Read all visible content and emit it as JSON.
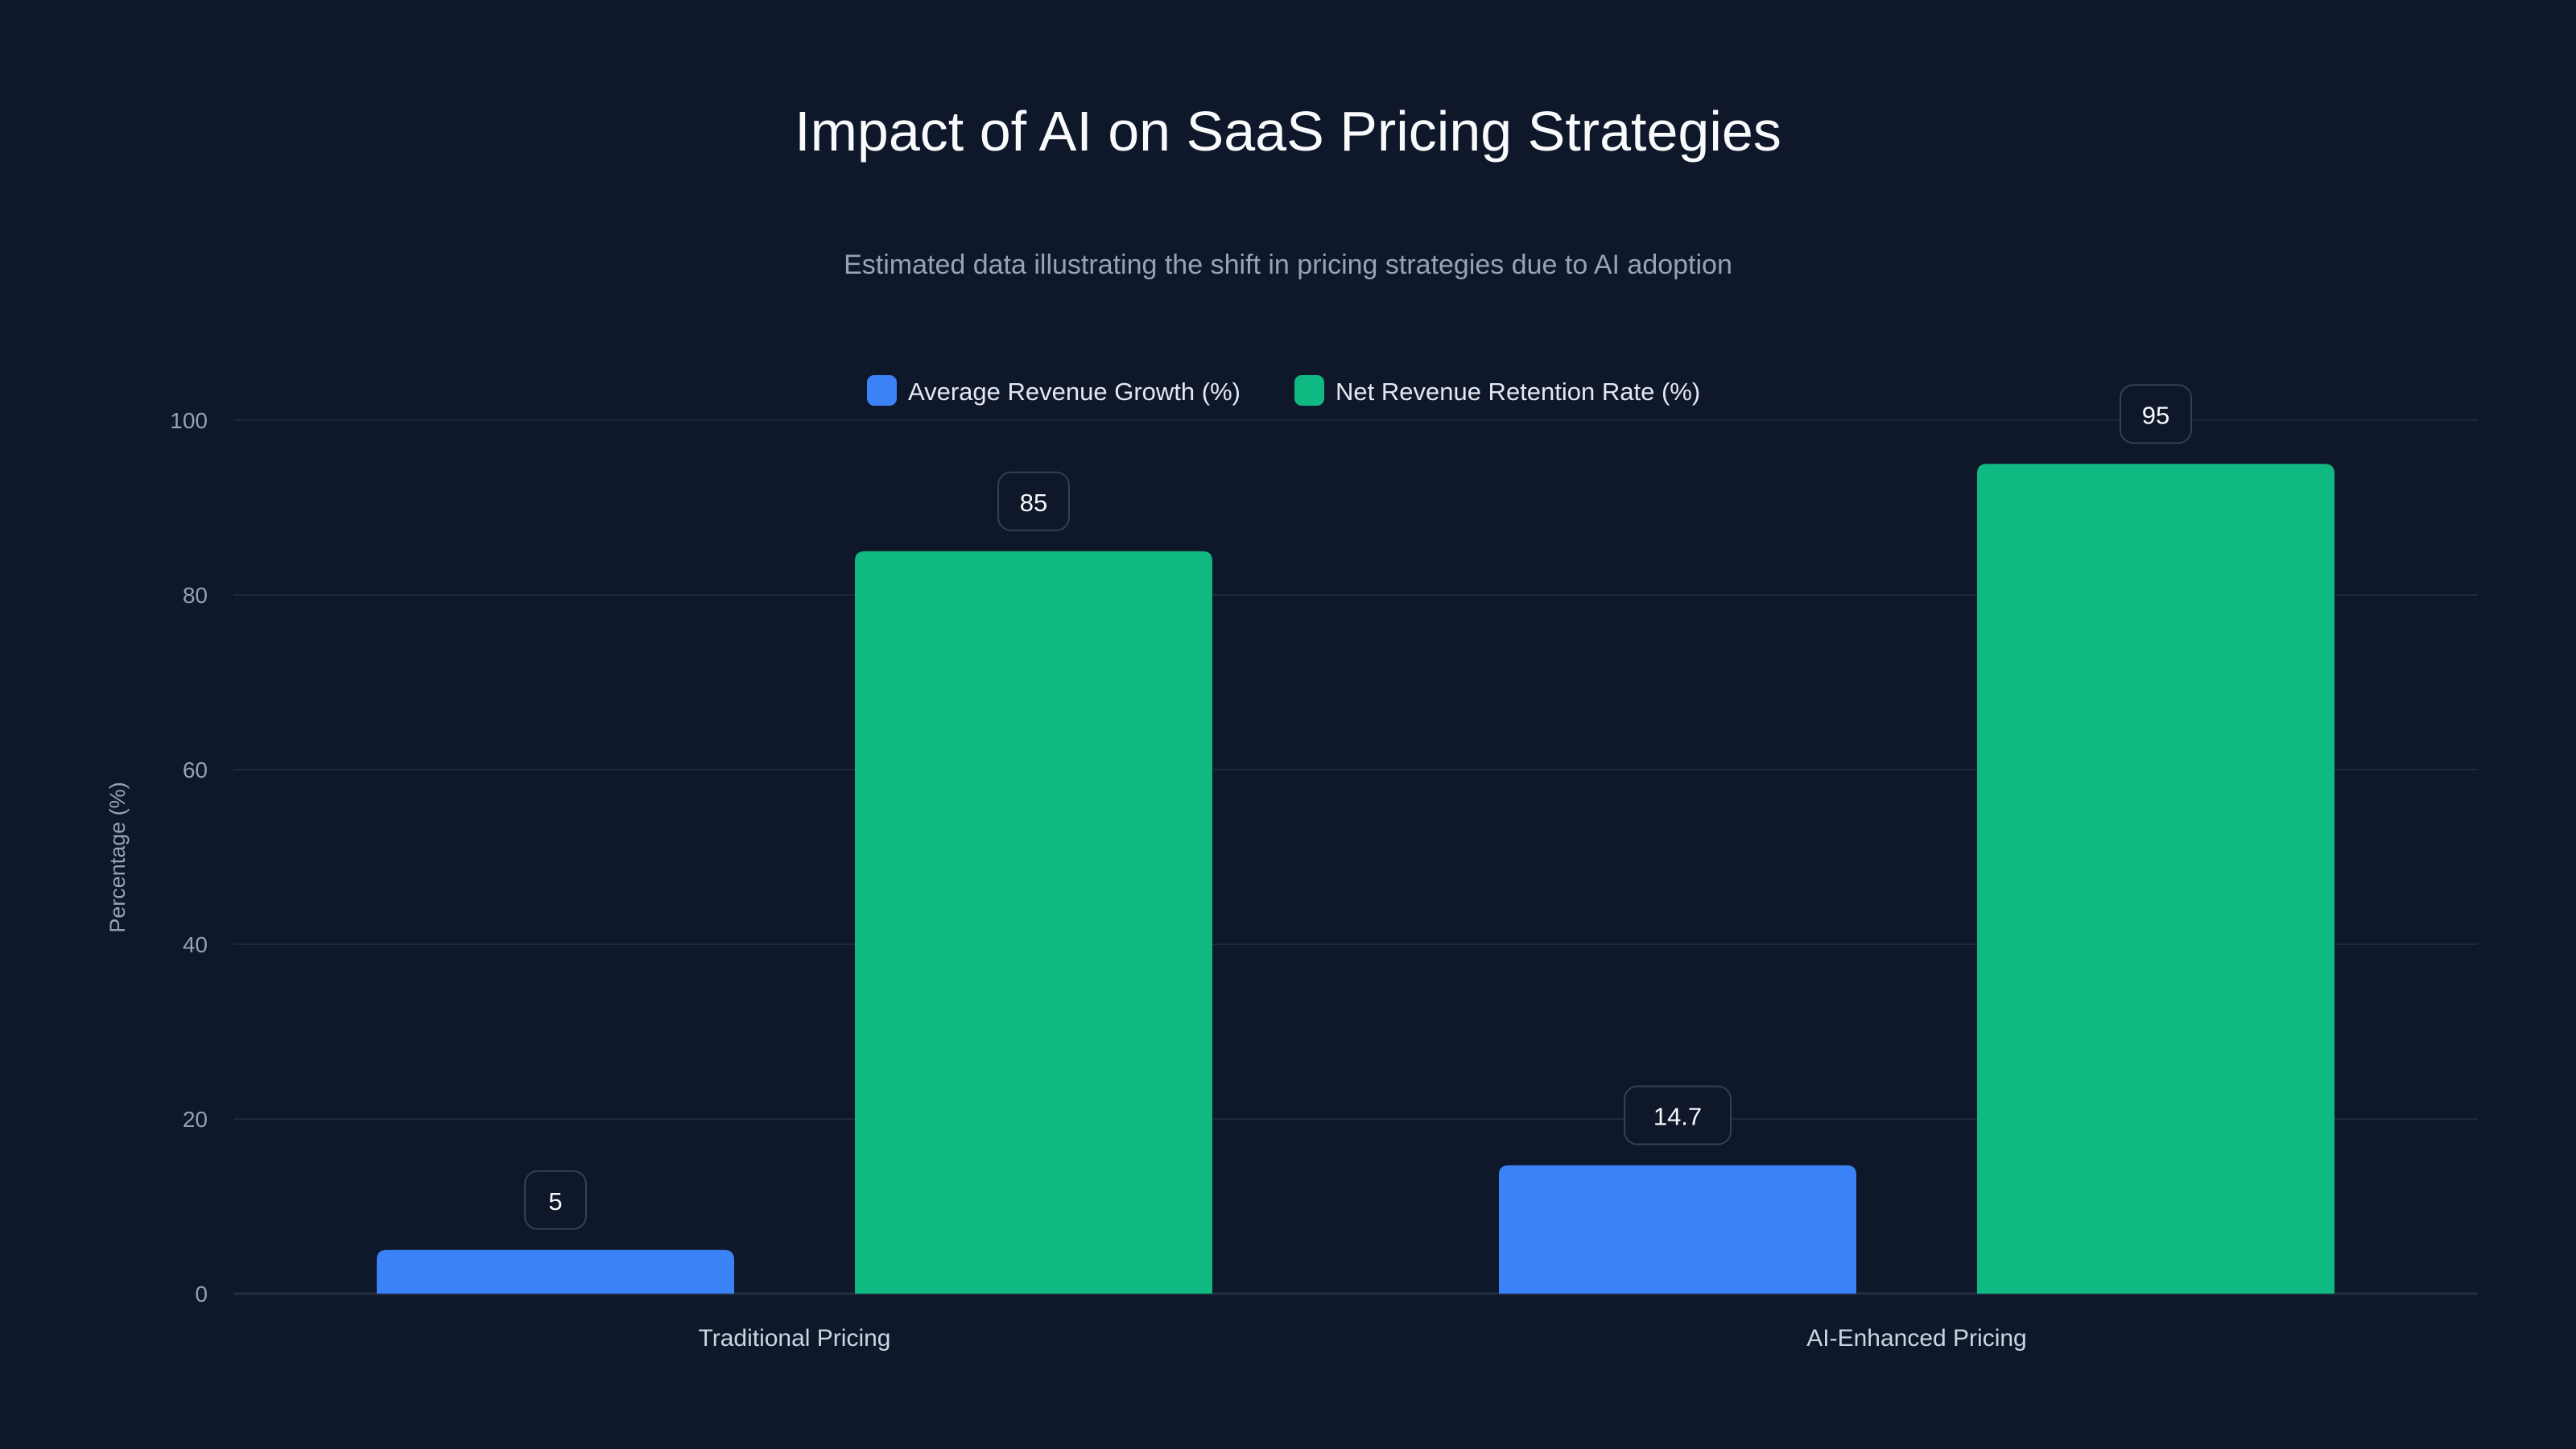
{
  "chart_data": {
    "type": "bar",
    "title": "Impact of AI on SaaS Pricing Strategies",
    "subtitle": "Estimated data illustrating the shift in pricing strategies due to AI adoption",
    "xlabel": "",
    "ylabel": "Percentage (%)",
    "ylim": [
      0,
      100
    ],
    "yticks": [
      0,
      20,
      40,
      60,
      80,
      100
    ],
    "grid": true,
    "legend_position": "top-center",
    "categories": [
      "Traditional Pricing",
      "AI-Enhanced Pricing"
    ],
    "series": [
      {
        "name": "Average Revenue Growth (%)",
        "color": "#3b82f6",
        "values": [
          5,
          14.7
        ]
      },
      {
        "name": "Net Revenue Retention Rate (%)",
        "color": "#10b981",
        "values": [
          85,
          95
        ]
      }
    ]
  }
}
